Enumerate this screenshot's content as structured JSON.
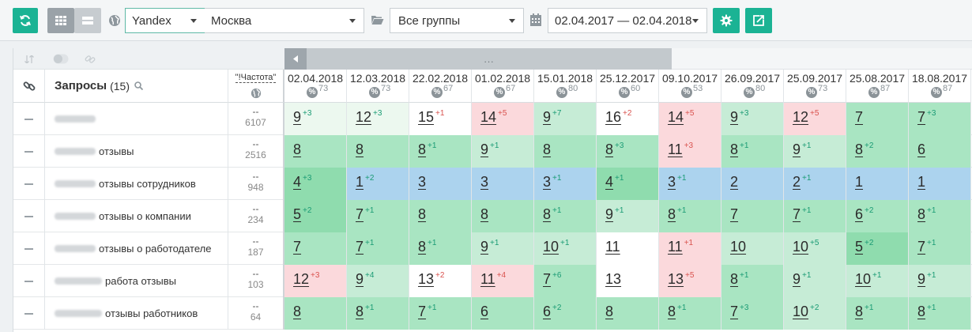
{
  "toolbar": {
    "search_engine": "Yandex",
    "region": "Москва",
    "group": "Все группы",
    "date_range": "02.04.2017 — 02.04.2018"
  },
  "table": {
    "queries_label": "Запросы",
    "queries_count": "(15)",
    "frequency_label": "\"!Частота\"",
    "scroll_dots": "...",
    "dates": [
      {
        "date": "02.04.2018",
        "pct": "73"
      },
      {
        "date": "12.03.2018",
        "pct": "73"
      },
      {
        "date": "22.02.2018",
        "pct": "67"
      },
      {
        "date": "01.02.2018",
        "pct": "67"
      },
      {
        "date": "15.01.2018",
        "pct": "80"
      },
      {
        "date": "25.12.2017",
        "pct": "60"
      },
      {
        "date": "09.10.2017",
        "pct": "53"
      },
      {
        "date": "26.09.2017",
        "pct": "80"
      },
      {
        "date": "25.09.2017",
        "pct": "73"
      },
      {
        "date": "25.08.2017",
        "pct": "87"
      },
      {
        "date": "18.08.2017",
        "pct": "87"
      }
    ],
    "rows": [
      {
        "blur_width": 52,
        "query_text": "",
        "freq_dash": "--",
        "freq": "6107",
        "positions": [
          {
            "p": "9",
            "d": "+3",
            "c": "#ecf8ef"
          },
          {
            "p": "12",
            "d": "+3",
            "c": "#ecf8ef"
          },
          {
            "p": "15",
            "d": "+1",
            "c": "#ffffff"
          },
          {
            "p": "14",
            "d": "+5",
            "c": "#fbd9dc"
          },
          {
            "p": "9",
            "d": "+7",
            "c": "#c6ecd6"
          },
          {
            "p": "16",
            "d": "+2",
            "c": "#ffffff"
          },
          {
            "p": "14",
            "d": "+5",
            "c": "#fbd9dc"
          },
          {
            "p": "9",
            "d": "+3",
            "c": "#c6ecd6"
          },
          {
            "p": "12",
            "d": "+5",
            "c": "#fbd9dc"
          },
          {
            "p": "7",
            "d": "",
            "c": "#a9e5c2"
          },
          {
            "p": "7",
            "d": "+3",
            "c": "#a9e5c2"
          }
        ]
      },
      {
        "blur_width": 52,
        "query_text": "отзывы",
        "freq_dash": "--",
        "freq": "2516",
        "positions": [
          {
            "p": "8",
            "d": "",
            "c": "#a9e5c2"
          },
          {
            "p": "8",
            "d": "",
            "c": "#a9e5c2"
          },
          {
            "p": "8",
            "d": "+1",
            "c": "#a9e5c2"
          },
          {
            "p": "9",
            "d": "+1",
            "c": "#c6ecd6"
          },
          {
            "p": "8",
            "d": "",
            "c": "#a9e5c2"
          },
          {
            "p": "8",
            "d": "+3",
            "c": "#a9e5c2"
          },
          {
            "p": "11",
            "d": "+3",
            "c": "#fbd9dc"
          },
          {
            "p": "8",
            "d": "+1",
            "c": "#a9e5c2"
          },
          {
            "p": "9",
            "d": "+1",
            "c": "#c6ecd6"
          },
          {
            "p": "8",
            "d": "+2",
            "c": "#a9e5c2"
          },
          {
            "p": "6",
            "d": "",
            "c": "#a9e5c2"
          }
        ]
      },
      {
        "blur_width": 52,
        "query_text": "отзывы сотрудников",
        "freq_dash": "--",
        "freq": "948",
        "positions": [
          {
            "p": "4",
            "d": "+3",
            "c": "#8fdcae"
          },
          {
            "p": "1",
            "d": "+2",
            "c": "#acd3ee"
          },
          {
            "p": "3",
            "d": "",
            "c": "#acd3ee"
          },
          {
            "p": "3",
            "d": "",
            "c": "#acd3ee"
          },
          {
            "p": "3",
            "d": "+1",
            "c": "#acd3ee"
          },
          {
            "p": "4",
            "d": "+1",
            "c": "#8fdcae"
          },
          {
            "p": "3",
            "d": "+1",
            "c": "#acd3ee"
          },
          {
            "p": "2",
            "d": "",
            "c": "#acd3ee"
          },
          {
            "p": "2",
            "d": "+1",
            "c": "#acd3ee"
          },
          {
            "p": "1",
            "d": "",
            "c": "#acd3ee"
          },
          {
            "p": "1",
            "d": "",
            "c": "#acd3ee"
          }
        ]
      },
      {
        "blur_width": 52,
        "query_text": "отзывы о компании",
        "freq_dash": "--",
        "freq": "234",
        "positions": [
          {
            "p": "5",
            "d": "+2",
            "c": "#8fdcae"
          },
          {
            "p": "7",
            "d": "+1",
            "c": "#a9e5c2"
          },
          {
            "p": "8",
            "d": "",
            "c": "#a9e5c2"
          },
          {
            "p": "8",
            "d": "",
            "c": "#a9e5c2"
          },
          {
            "p": "8",
            "d": "+1",
            "c": "#a9e5c2"
          },
          {
            "p": "9",
            "d": "+1",
            "c": "#c6ecd6"
          },
          {
            "p": "8",
            "d": "+1",
            "c": "#a9e5c2"
          },
          {
            "p": "7",
            "d": "",
            "c": "#a9e5c2"
          },
          {
            "p": "7",
            "d": "+1",
            "c": "#a9e5c2"
          },
          {
            "p": "6",
            "d": "+2",
            "c": "#a9e5c2"
          },
          {
            "p": "8",
            "d": "+1",
            "c": "#a9e5c2"
          }
        ]
      },
      {
        "blur_width": 52,
        "query_text": "отзывы о работодателе",
        "freq_dash": "--",
        "freq": "187",
        "positions": [
          {
            "p": "7",
            "d": "",
            "c": "#a9e5c2"
          },
          {
            "p": "7",
            "d": "+1",
            "c": "#a9e5c2"
          },
          {
            "p": "8",
            "d": "+1",
            "c": "#a9e5c2"
          },
          {
            "p": "9",
            "d": "+1",
            "c": "#c6ecd6"
          },
          {
            "p": "10",
            "d": "+1",
            "c": "#c6ecd6"
          },
          {
            "p": "11",
            "d": "",
            "c": "#ffffff"
          },
          {
            "p": "11",
            "d": "+1",
            "c": "#fbd9dc"
          },
          {
            "p": "10",
            "d": "",
            "c": "#c6ecd6"
          },
          {
            "p": "10",
            "d": "+5",
            "c": "#c6ecd6"
          },
          {
            "p": "5",
            "d": "+2",
            "c": "#8fdcae"
          },
          {
            "p": "7",
            "d": "+1",
            "c": "#a9e5c2"
          }
        ]
      },
      {
        "blur_width": 60,
        "query_text": "работа отзывы",
        "freq_dash": "--",
        "freq": "103",
        "positions": [
          {
            "p": "12",
            "d": "+3",
            "c": "#fbd9dc"
          },
          {
            "p": "9",
            "d": "+4",
            "c": "#c6ecd6"
          },
          {
            "p": "13",
            "d": "+2",
            "c": "#ffffff"
          },
          {
            "p": "11",
            "d": "+4",
            "c": "#fbd9dc"
          },
          {
            "p": "7",
            "d": "+6",
            "c": "#a9e5c2"
          },
          {
            "p": "13",
            "d": "",
            "c": "#ffffff"
          },
          {
            "p": "13",
            "d": "+5",
            "c": "#fbd9dc"
          },
          {
            "p": "8",
            "d": "+1",
            "c": "#a9e5c2"
          },
          {
            "p": "9",
            "d": "+1",
            "c": "#c6ecd6"
          },
          {
            "p": "10",
            "d": "+1",
            "c": "#c6ecd6"
          },
          {
            "p": "9",
            "d": "+1",
            "c": "#c6ecd6"
          }
        ]
      },
      {
        "blur_width": 60,
        "query_text": "отзывы работников",
        "freq_dash": "--",
        "freq": "64",
        "positions": [
          {
            "p": "8",
            "d": "",
            "c": "#a9e5c2"
          },
          {
            "p": "8",
            "d": "+1",
            "c": "#a9e5c2"
          },
          {
            "p": "7",
            "d": "+1",
            "c": "#a9e5c2"
          },
          {
            "p": "6",
            "d": "",
            "c": "#a9e5c2"
          },
          {
            "p": "6",
            "d": "+2",
            "c": "#a9e5c2"
          },
          {
            "p": "8",
            "d": "",
            "c": "#a9e5c2"
          },
          {
            "p": "8",
            "d": "+1",
            "c": "#a9e5c2"
          },
          {
            "p": "7",
            "d": "+3",
            "c": "#a9e5c2"
          },
          {
            "p": "10",
            "d": "+2",
            "c": "#c6ecd6"
          },
          {
            "p": "8",
            "d": "+1",
            "c": "#a9e5c2"
          },
          {
            "p": "8",
            "d": "+1",
            "c": "#a9e5c2"
          }
        ]
      }
    ]
  },
  "colors": {
    "accent": "#1bb394",
    "positive_delta": "#1a9b74",
    "negative_delta": "#d9534f"
  }
}
